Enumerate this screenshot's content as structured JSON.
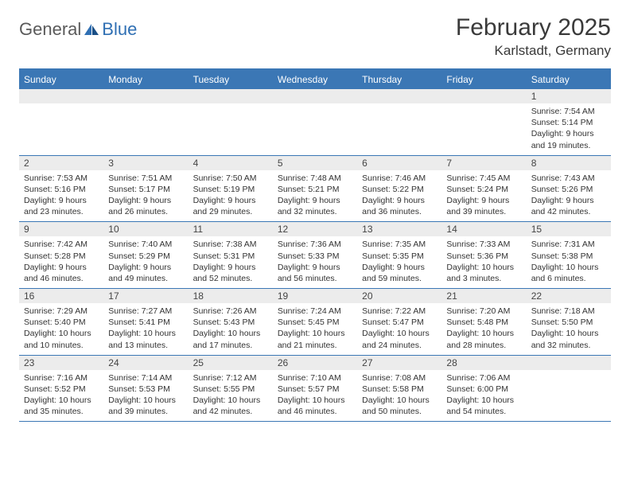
{
  "brand": {
    "general": "General",
    "blue": "Blue"
  },
  "title": "February 2025",
  "location": "Karlstadt, Germany",
  "colors": {
    "header_bg": "#3b77b5",
    "header_text": "#ffffff",
    "daynum_bg": "#ececec",
    "text": "#333333",
    "border": "#3b77b5",
    "logo_gray": "#5a5a5a",
    "logo_blue": "#2f6fb3"
  },
  "day_names": [
    "Sunday",
    "Monday",
    "Tuesday",
    "Wednesday",
    "Thursday",
    "Friday",
    "Saturday"
  ],
  "weeks": [
    [
      {
        "n": "",
        "sr": "",
        "ss": "",
        "dl": ""
      },
      {
        "n": "",
        "sr": "",
        "ss": "",
        "dl": ""
      },
      {
        "n": "",
        "sr": "",
        "ss": "",
        "dl": ""
      },
      {
        "n": "",
        "sr": "",
        "ss": "",
        "dl": ""
      },
      {
        "n": "",
        "sr": "",
        "ss": "",
        "dl": ""
      },
      {
        "n": "",
        "sr": "",
        "ss": "",
        "dl": ""
      },
      {
        "n": "1",
        "sr": "Sunrise: 7:54 AM",
        "ss": "Sunset: 5:14 PM",
        "dl": "Daylight: 9 hours and 19 minutes."
      }
    ],
    [
      {
        "n": "2",
        "sr": "Sunrise: 7:53 AM",
        "ss": "Sunset: 5:16 PM",
        "dl": "Daylight: 9 hours and 23 minutes."
      },
      {
        "n": "3",
        "sr": "Sunrise: 7:51 AM",
        "ss": "Sunset: 5:17 PM",
        "dl": "Daylight: 9 hours and 26 minutes."
      },
      {
        "n": "4",
        "sr": "Sunrise: 7:50 AM",
        "ss": "Sunset: 5:19 PM",
        "dl": "Daylight: 9 hours and 29 minutes."
      },
      {
        "n": "5",
        "sr": "Sunrise: 7:48 AM",
        "ss": "Sunset: 5:21 PM",
        "dl": "Daylight: 9 hours and 32 minutes."
      },
      {
        "n": "6",
        "sr": "Sunrise: 7:46 AM",
        "ss": "Sunset: 5:22 PM",
        "dl": "Daylight: 9 hours and 36 minutes."
      },
      {
        "n": "7",
        "sr": "Sunrise: 7:45 AM",
        "ss": "Sunset: 5:24 PM",
        "dl": "Daylight: 9 hours and 39 minutes."
      },
      {
        "n": "8",
        "sr": "Sunrise: 7:43 AM",
        "ss": "Sunset: 5:26 PM",
        "dl": "Daylight: 9 hours and 42 minutes."
      }
    ],
    [
      {
        "n": "9",
        "sr": "Sunrise: 7:42 AM",
        "ss": "Sunset: 5:28 PM",
        "dl": "Daylight: 9 hours and 46 minutes."
      },
      {
        "n": "10",
        "sr": "Sunrise: 7:40 AM",
        "ss": "Sunset: 5:29 PM",
        "dl": "Daylight: 9 hours and 49 minutes."
      },
      {
        "n": "11",
        "sr": "Sunrise: 7:38 AM",
        "ss": "Sunset: 5:31 PM",
        "dl": "Daylight: 9 hours and 52 minutes."
      },
      {
        "n": "12",
        "sr": "Sunrise: 7:36 AM",
        "ss": "Sunset: 5:33 PM",
        "dl": "Daylight: 9 hours and 56 minutes."
      },
      {
        "n": "13",
        "sr": "Sunrise: 7:35 AM",
        "ss": "Sunset: 5:35 PM",
        "dl": "Daylight: 9 hours and 59 minutes."
      },
      {
        "n": "14",
        "sr": "Sunrise: 7:33 AM",
        "ss": "Sunset: 5:36 PM",
        "dl": "Daylight: 10 hours and 3 minutes."
      },
      {
        "n": "15",
        "sr": "Sunrise: 7:31 AM",
        "ss": "Sunset: 5:38 PM",
        "dl": "Daylight: 10 hours and 6 minutes."
      }
    ],
    [
      {
        "n": "16",
        "sr": "Sunrise: 7:29 AM",
        "ss": "Sunset: 5:40 PM",
        "dl": "Daylight: 10 hours and 10 minutes."
      },
      {
        "n": "17",
        "sr": "Sunrise: 7:27 AM",
        "ss": "Sunset: 5:41 PM",
        "dl": "Daylight: 10 hours and 13 minutes."
      },
      {
        "n": "18",
        "sr": "Sunrise: 7:26 AM",
        "ss": "Sunset: 5:43 PM",
        "dl": "Daylight: 10 hours and 17 minutes."
      },
      {
        "n": "19",
        "sr": "Sunrise: 7:24 AM",
        "ss": "Sunset: 5:45 PM",
        "dl": "Daylight: 10 hours and 21 minutes."
      },
      {
        "n": "20",
        "sr": "Sunrise: 7:22 AM",
        "ss": "Sunset: 5:47 PM",
        "dl": "Daylight: 10 hours and 24 minutes."
      },
      {
        "n": "21",
        "sr": "Sunrise: 7:20 AM",
        "ss": "Sunset: 5:48 PM",
        "dl": "Daylight: 10 hours and 28 minutes."
      },
      {
        "n": "22",
        "sr": "Sunrise: 7:18 AM",
        "ss": "Sunset: 5:50 PM",
        "dl": "Daylight: 10 hours and 32 minutes."
      }
    ],
    [
      {
        "n": "23",
        "sr": "Sunrise: 7:16 AM",
        "ss": "Sunset: 5:52 PM",
        "dl": "Daylight: 10 hours and 35 minutes."
      },
      {
        "n": "24",
        "sr": "Sunrise: 7:14 AM",
        "ss": "Sunset: 5:53 PM",
        "dl": "Daylight: 10 hours and 39 minutes."
      },
      {
        "n": "25",
        "sr": "Sunrise: 7:12 AM",
        "ss": "Sunset: 5:55 PM",
        "dl": "Daylight: 10 hours and 42 minutes."
      },
      {
        "n": "26",
        "sr": "Sunrise: 7:10 AM",
        "ss": "Sunset: 5:57 PM",
        "dl": "Daylight: 10 hours and 46 minutes."
      },
      {
        "n": "27",
        "sr": "Sunrise: 7:08 AM",
        "ss": "Sunset: 5:58 PM",
        "dl": "Daylight: 10 hours and 50 minutes."
      },
      {
        "n": "28",
        "sr": "Sunrise: 7:06 AM",
        "ss": "Sunset: 6:00 PM",
        "dl": "Daylight: 10 hours and 54 minutes."
      },
      {
        "n": "",
        "sr": "",
        "ss": "",
        "dl": ""
      }
    ]
  ]
}
